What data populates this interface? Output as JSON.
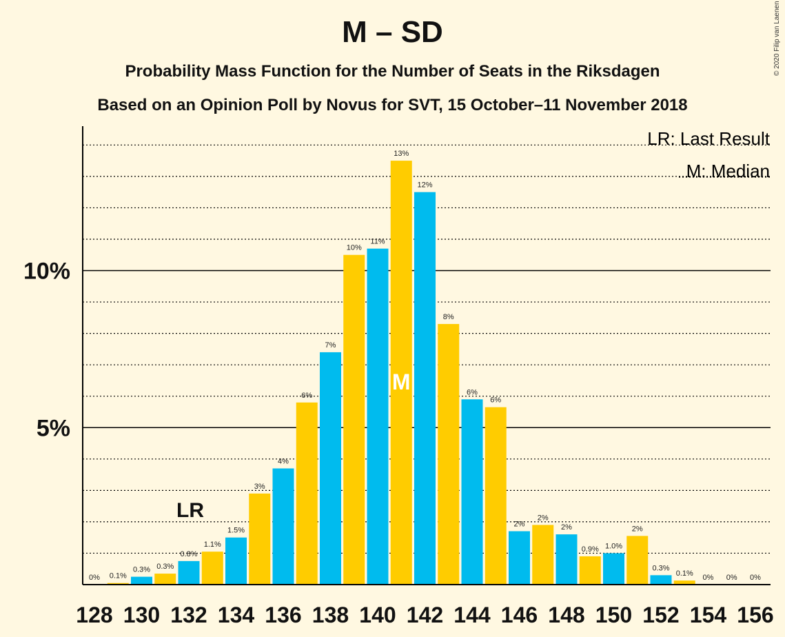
{
  "title": "M – SD",
  "subtitle1": "Probability Mass Function for the Number of Seats in the Riksdagen",
  "subtitle2": "Based on an Opinion Poll by Novus for SVT, 15 October–11 November 2018",
  "copyright": "© 2020 Filip van Laenen",
  "legend": {
    "last_result": "LR: Last Result",
    "median": "M: Median"
  },
  "markers": {
    "last_result_label": "LR",
    "median_label": "M"
  },
  "colors": {
    "background": "#FFF8E1",
    "blue": "#00BBEE",
    "yellow": "#FFCC00",
    "axis": "#000000"
  },
  "chart_data": {
    "type": "bar",
    "x": [
      128,
      129,
      130,
      131,
      132,
      133,
      134,
      135,
      136,
      137,
      138,
      139,
      140,
      141,
      142,
      143,
      144,
      145,
      146,
      147,
      148,
      149,
      150,
      151,
      152,
      153,
      154,
      155,
      156
    ],
    "values": [
      0,
      0.05,
      0.25,
      0.35,
      0.75,
      1.05,
      1.5,
      2.9,
      3.7,
      5.8,
      7.4,
      10.5,
      10.7,
      13.5,
      12.5,
      8.3,
      5.9,
      5.65,
      1.7,
      1.9,
      1.6,
      0.9,
      1.0,
      1.55,
      0.3,
      0.13,
      0,
      0,
      0
    ],
    "value_labels": [
      "0%",
      "0.1%",
      "0.3%",
      "0.3%",
      "0.8%",
      "1.1%",
      "1.5%",
      "3%",
      "4%",
      "6%",
      "7%",
      "10%",
      "11%",
      "13%",
      "12%",
      "8%",
      "6%",
      "6%",
      "2%",
      "2%",
      "2%",
      "0.9%",
      "1.0%",
      "2%",
      "0.3%",
      "0.1%",
      "0%",
      "0%",
      "0%"
    ],
    "x_tick_labels": [
      "128",
      "130",
      "132",
      "134",
      "136",
      "138",
      "140",
      "142",
      "144",
      "146",
      "148",
      "150",
      "152",
      "154",
      "156"
    ],
    "y_ticks": [
      5,
      10
    ],
    "y_tick_labels": [
      "5%",
      "10%"
    ],
    "ylim": [
      0,
      14.6
    ],
    "last_result_seat": 132,
    "median_seat": 141,
    "grid": "dotted every 1%, solid at 5% and 10%",
    "legend_position": "top-right"
  }
}
